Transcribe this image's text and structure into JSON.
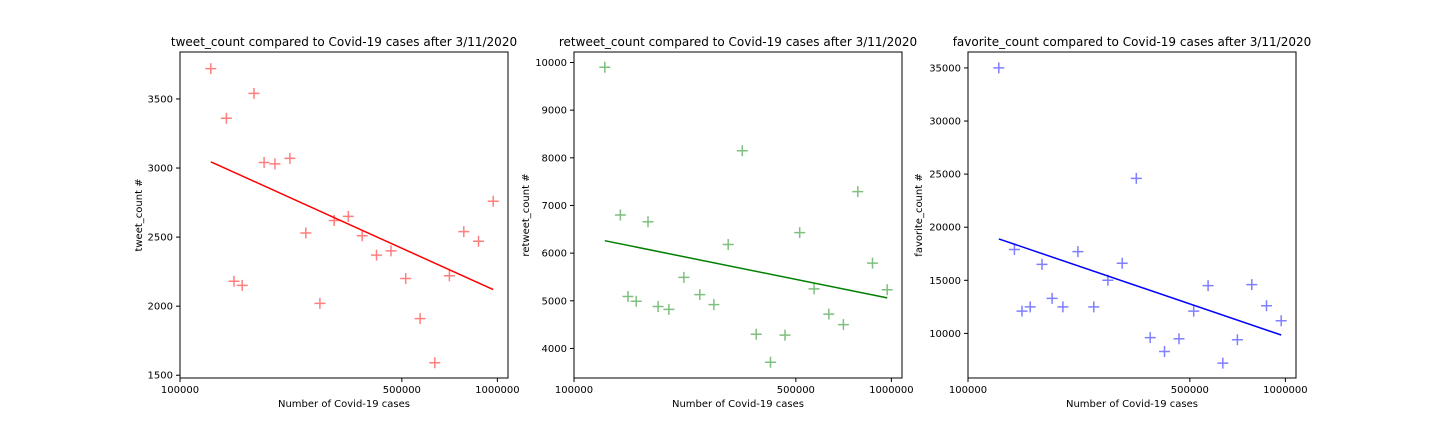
{
  "colors": {
    "tweet": "#ff0000",
    "retweet": "#008000",
    "favorite": "#0000ff",
    "axis": "#000000",
    "background": "#ffffff"
  },
  "chart_data": [
    {
      "type": "scatter",
      "title": "tweet_count compared to Covid-19 cases after 3/11/2020",
      "xlabel": "Number of Covid-19 cases",
      "ylabel": "tweet_count #",
      "x_scale": "log",
      "xlim": [
        100000,
        1080000
      ],
      "ylim": [
        1480,
        3840
      ],
      "x_ticks": [
        100000,
        500000,
        1000000
      ],
      "x_tick_labels": [
        "100000",
        "500000",
        "1000000"
      ],
      "y_ticks": [
        1500,
        2000,
        2500,
        3000,
        3500
      ],
      "y_tick_labels": [
        "1500",
        "2000",
        "2500",
        "3000",
        "3500"
      ],
      "grid": false,
      "marker": "+",
      "color_key": "tweet",
      "points": [
        {
          "x": 125000,
          "y": 3720
        },
        {
          "x": 140000,
          "y": 3360
        },
        {
          "x": 148000,
          "y": 2180
        },
        {
          "x": 157000,
          "y": 2150
        },
        {
          "x": 171000,
          "y": 3540
        },
        {
          "x": 184000,
          "y": 3040
        },
        {
          "x": 199000,
          "y": 3030
        },
        {
          "x": 222000,
          "y": 3070
        },
        {
          "x": 249000,
          "y": 2530
        },
        {
          "x": 276000,
          "y": 2020
        },
        {
          "x": 306000,
          "y": 2620
        },
        {
          "x": 339000,
          "y": 2650
        },
        {
          "x": 375000,
          "y": 2510
        },
        {
          "x": 416000,
          "y": 2370
        },
        {
          "x": 462000,
          "y": 2400
        },
        {
          "x": 514000,
          "y": 2200
        },
        {
          "x": 571000,
          "y": 1910
        },
        {
          "x": 635000,
          "y": 1590
        },
        {
          "x": 706000,
          "y": 2220
        },
        {
          "x": 784000,
          "y": 2540
        },
        {
          "x": 872000,
          "y": 2470
        },
        {
          "x": 970000,
          "y": 2760
        }
      ],
      "trendline": {
        "x": [
          125000,
          970000
        ],
        "y": [
          3045,
          2120
        ]
      }
    },
    {
      "type": "scatter",
      "title": "retweet_count compared to Covid-19 cases after 3/11/2020",
      "xlabel": "Number of Covid-19 cases",
      "ylabel": "retweet_count #",
      "x_scale": "log",
      "xlim": [
        100000,
        1080000
      ],
      "ylim": [
        3380,
        10220
      ],
      "x_ticks": [
        100000,
        500000,
        1000000
      ],
      "x_tick_labels": [
        "100000",
        "500000",
        "1000000"
      ],
      "y_ticks": [
        4000,
        5000,
        6000,
        7000,
        8000,
        9000,
        10000
      ],
      "y_tick_labels": [
        "4000",
        "5000",
        "6000",
        "7000",
        "8000",
        "9000",
        "10000"
      ],
      "grid": false,
      "marker": "+",
      "color_key": "retweet",
      "points": [
        {
          "x": 125000,
          "y": 9900
        },
        {
          "x": 140000,
          "y": 6800
        },
        {
          "x": 148000,
          "y": 5090
        },
        {
          "x": 157000,
          "y": 4990
        },
        {
          "x": 171000,
          "y": 6660
        },
        {
          "x": 184000,
          "y": 4880
        },
        {
          "x": 199000,
          "y": 4820
        },
        {
          "x": 222000,
          "y": 5490
        },
        {
          "x": 249000,
          "y": 5130
        },
        {
          "x": 276000,
          "y": 4920
        },
        {
          "x": 306000,
          "y": 6180
        },
        {
          "x": 339000,
          "y": 8150
        },
        {
          "x": 375000,
          "y": 4300
        },
        {
          "x": 416000,
          "y": 3710
        },
        {
          "x": 462000,
          "y": 4280
        },
        {
          "x": 514000,
          "y": 6430
        },
        {
          "x": 571000,
          "y": 5250
        },
        {
          "x": 635000,
          "y": 4720
        },
        {
          "x": 706000,
          "y": 4500
        },
        {
          "x": 784000,
          "y": 7290
        },
        {
          "x": 872000,
          "y": 5790
        },
        {
          "x": 970000,
          "y": 5230
        }
      ],
      "trendline": {
        "x": [
          125000,
          970000
        ],
        "y": [
          6260,
          5060
        ]
      }
    },
    {
      "type": "scatter",
      "title": "favorite_count compared to Covid-19 cases after 3/11/2020",
      "xlabel": "Number of Covid-19 cases",
      "ylabel": "favorite_count #",
      "x_scale": "log",
      "xlim": [
        100000,
        1080000
      ],
      "ylim": [
        5800,
        36500
      ],
      "x_ticks": [
        100000,
        500000,
        1000000
      ],
      "x_tick_labels": [
        "100000",
        "500000",
        "1000000"
      ],
      "y_ticks": [
        10000,
        15000,
        20000,
        25000,
        30000,
        35000
      ],
      "y_tick_labels": [
        "10000",
        "15000",
        "20000",
        "25000",
        "30000",
        "35000"
      ],
      "grid": false,
      "marker": "+",
      "color_key": "favorite",
      "points": [
        {
          "x": 125000,
          "y": 35000
        },
        {
          "x": 140000,
          "y": 17900
        },
        {
          "x": 148000,
          "y": 12100
        },
        {
          "x": 157000,
          "y": 12500
        },
        {
          "x": 171000,
          "y": 16500
        },
        {
          "x": 184000,
          "y": 13300
        },
        {
          "x": 199000,
          "y": 12500
        },
        {
          "x": 222000,
          "y": 17700
        },
        {
          "x": 249000,
          "y": 12500
        },
        {
          "x": 276000,
          "y": 15000
        },
        {
          "x": 306000,
          "y": 16600
        },
        {
          "x": 339000,
          "y": 24600
        },
        {
          "x": 375000,
          "y": 9600
        },
        {
          "x": 416000,
          "y": 8300
        },
        {
          "x": 462000,
          "y": 9500
        },
        {
          "x": 514000,
          "y": 12100
        },
        {
          "x": 571000,
          "y": 14500
        },
        {
          "x": 635000,
          "y": 7200
        },
        {
          "x": 706000,
          "y": 9400
        },
        {
          "x": 784000,
          "y": 14600
        },
        {
          "x": 872000,
          "y": 12600
        },
        {
          "x": 970000,
          "y": 11200
        }
      ],
      "trendline": {
        "x": [
          125000,
          970000
        ],
        "y": [
          18900,
          9850
        ]
      }
    }
  ]
}
